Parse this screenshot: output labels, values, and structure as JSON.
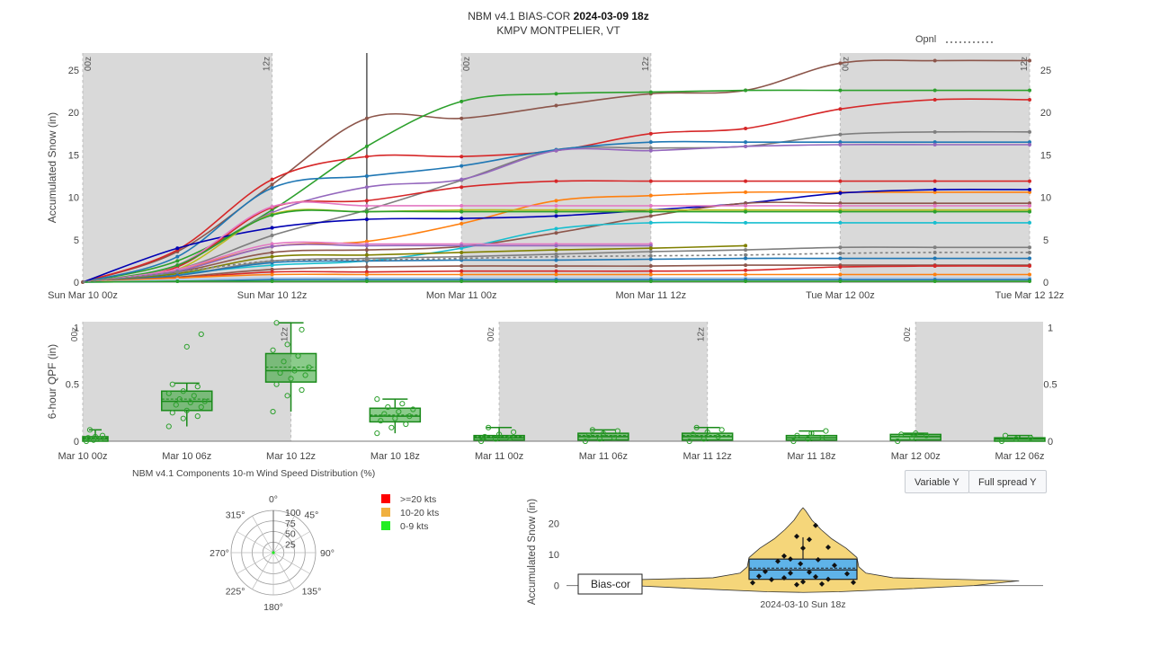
{
  "header": {
    "title_prefix": "NBM v4.1 BIAS-COR",
    "title_bold": "2024-03-09 18z",
    "subtitle": "KMPV MONTPELIER, VT"
  },
  "legend_opnl": {
    "label": "Opnl"
  },
  "buttons": {
    "variable_y": "Variable Y",
    "full_spread_y": "Full spread Y"
  },
  "wind_title": "NBM v4.1 Components 10-m Wind Speed Distribution (%)",
  "chart_data": [
    {
      "type": "line",
      "ylabel": "Accumulated Snow (in)",
      "ylim": [
        0,
        27
      ],
      "x_ticks": [
        "Sun Mar 10 00z",
        "Sun Mar 10 12z",
        "Mon Mar 11 00z",
        "Mon Mar 11 12z",
        "Tue Mar 12 00z",
        "Tue Mar 12 12z"
      ],
      "y_ticks": [
        "0",
        "5",
        "10",
        "15",
        "20",
        "25"
      ],
      "shade_labels": [
        "00z",
        "12z",
        "00z",
        "12z",
        "00z",
        "12z"
      ],
      "x_hours": [
        0,
        6,
        12,
        18,
        24,
        30,
        36,
        42,
        48,
        54,
        60
      ],
      "series": [
        {
          "color": "#8c564b",
          "values": [
            0,
            3.6,
            11.5,
            19.3,
            19.3,
            20.8,
            22.2,
            22.6,
            25.8,
            26.1,
            26.1
          ]
        },
        {
          "color": "#2ca02c",
          "values": [
            0,
            2.5,
            8.5,
            16.0,
            21.3,
            22.2,
            22.4,
            22.6,
            22.6,
            22.6,
            22.6
          ]
        },
        {
          "color": "#d62728",
          "values": [
            0,
            3.8,
            12.1,
            14.8,
            14.8,
            15.5,
            17.5,
            18.1,
            20.4,
            21.5,
            21.5
          ]
        },
        {
          "color": "#7f7f7f",
          "values": [
            0,
            1.5,
            5.5,
            8.5,
            12.0,
            15.6,
            15.8,
            16.0,
            17.4,
            17.7,
            17.7
          ]
        },
        {
          "color": "#1f77b4",
          "values": [
            0,
            3.0,
            11.1,
            12.5,
            13.7,
            15.6,
            16.5,
            16.5,
            16.5,
            16.5,
            16.5
          ]
        },
        {
          "color": "#9467bd",
          "values": [
            0,
            2.0,
            8.2,
            11.2,
            12.1,
            15.5,
            15.5,
            16.0,
            16.2,
            16.2,
            16.2
          ]
        },
        {
          "color": "#d62728",
          "values": [
            0,
            1.8,
            8.8,
            9.6,
            11.2,
            11.9,
            11.9,
            11.9,
            11.9,
            11.9,
            11.9
          ]
        },
        {
          "color": "#ff7f0e",
          "values": [
            0,
            1.5,
            4.2,
            4.8,
            6.9,
            9.6,
            10.2,
            10.6,
            10.6,
            10.6,
            10.6
          ]
        },
        {
          "color": "#0000b3",
          "values": [
            0,
            4.0,
            6.4,
            7.4,
            7.5,
            7.8,
            8.5,
            9.3,
            10.5,
            10.9,
            10.9
          ]
        },
        {
          "color": "#8c564b",
          "values": [
            0,
            1.2,
            3.5,
            3.8,
            4.2,
            5.8,
            7.8,
            9.3,
            9.3,
            9.3,
            9.3
          ]
        },
        {
          "color": "#e377c2",
          "values": [
            0,
            2.0,
            8.9,
            9.0,
            9.0,
            9.0,
            9.0,
            9.0,
            9.0,
            9.0,
            9.0
          ]
        },
        {
          "color": "#bcbd22",
          "values": [
            0,
            1.5,
            8.0,
            8.3,
            8.5,
            8.5,
            8.5,
            8.5,
            8.5,
            8.5,
            8.5
          ]
        },
        {
          "color": "#2ca02c",
          "values": [
            0,
            2.0,
            7.9,
            8.3,
            8.3,
            8.3,
            8.3,
            8.3,
            8.3,
            8.3,
            8.3
          ]
        },
        {
          "color": "#17becf",
          "values": [
            0,
            1.0,
            2.0,
            2.5,
            4.0,
            6.3,
            7.0,
            7.0,
            7.0,
            7.0,
            7.0
          ]
        },
        {
          "color": "#e377c2",
          "values": [
            0,
            1.5,
            4.5,
            4.5,
            4.5,
            4.5,
            4.5
          ]
        },
        {
          "color": "#9467bd",
          "values": [
            0,
            1.3,
            4.2,
            4.3,
            4.3,
            4.3,
            4.3
          ]
        },
        {
          "color": "#808000",
          "values": [
            0,
            1.0,
            3.0,
            3.2,
            3.5,
            3.8,
            4.0,
            4.3
          ]
        },
        {
          "color": "#7f7f7f",
          "values": [
            0,
            0.8,
            2.5,
            2.8,
            3.0,
            3.3,
            3.6,
            3.8,
            4.1,
            4.1,
            4.1
          ]
        },
        {
          "color": "#1f77b4",
          "values": [
            0,
            0.8,
            2.3,
            2.5,
            2.6,
            2.6,
            2.7,
            2.8,
            2.8,
            2.8,
            2.8
          ]
        },
        {
          "color": "#8c564b",
          "values": [
            0,
            0.6,
            1.5,
            1.8,
            1.9,
            1.9,
            1.9,
            2.0,
            2.0,
            2.0,
            2.0
          ]
        },
        {
          "color": "#d62728",
          "values": [
            0,
            0.5,
            1.2,
            1.2,
            1.3,
            1.3,
            1.3,
            1.4,
            1.8,
            1.9,
            1.9
          ]
        },
        {
          "color": "#ff7f0e",
          "values": [
            0,
            0.5,
            0.9,
            0.9,
            0.9,
            0.9,
            0.9,
            0.9,
            0.9,
            0.9,
            0.9
          ]
        },
        {
          "color": "#aec7e8",
          "values": [
            0,
            0.3,
            0.5,
            0.5,
            0.5,
            0.5,
            0.5,
            0.5,
            0.5,
            0.5,
            0.5
          ]
        },
        {
          "color": "#1f77b4",
          "values": [
            0,
            0.1,
            0.3,
            0.3,
            0.3,
            0.3,
            0.3,
            0.3,
            0.3,
            0.3,
            0.3
          ]
        },
        {
          "color": "#2ca02c",
          "values": [
            0,
            0.1,
            0.1,
            0.1,
            0.1,
            0.1,
            0.1,
            0.1,
            0.1,
            0.1,
            0.1
          ]
        },
        {
          "color": "#7f7f7f",
          "dash": true,
          "values": [
            0,
            1.2,
            2.5,
            2.6,
            2.8,
            3.0,
            3.1,
            3.2,
            3.4,
            3.5,
            3.5
          ]
        }
      ]
    },
    {
      "type": "box",
      "ylabel": "6-hour QPF (in)",
      "ylim": [
        0,
        1.05
      ],
      "y_ticks": [
        "0",
        "0.5",
        "1"
      ],
      "categories": [
        "Mar 10 00z",
        "Mar 10 06z",
        "Mar 10 12z",
        "Mar 10 18z",
        "Mar 11 00z",
        "Mar 11 06z",
        "Mar 11 12z",
        "Mar 11 18z",
        "Mar 12 00z",
        "Mar 12 06z"
      ],
      "shade_labels": [
        "00z",
        "12z",
        "00z",
        "12z",
        "00z"
      ],
      "boxes": [
        {
          "q1": 0.0,
          "med": 0.02,
          "q3": 0.04,
          "lo": 0.0,
          "hi": 0.1,
          "mean": 0.03
        },
        {
          "q1": 0.27,
          "med": 0.35,
          "q3": 0.44,
          "lo": 0.13,
          "hi": 0.51,
          "mean": 0.37
        },
        {
          "q1": 0.52,
          "med": 0.62,
          "q3": 0.77,
          "lo": 0.26,
          "hi": 1.04,
          "mean": 0.65
        },
        {
          "q1": 0.17,
          "med": 0.22,
          "q3": 0.29,
          "lo": 0.07,
          "hi": 0.37,
          "mean": 0.23
        },
        {
          "q1": 0.01,
          "med": 0.03,
          "q3": 0.05,
          "lo": 0.0,
          "hi": 0.12,
          "mean": 0.04
        },
        {
          "q1": 0.01,
          "med": 0.04,
          "q3": 0.07,
          "lo": 0.0,
          "hi": 0.1,
          "mean": 0.05
        },
        {
          "q1": 0.01,
          "med": 0.04,
          "q3": 0.07,
          "lo": 0.0,
          "hi": 0.12,
          "mean": 0.05
        },
        {
          "q1": 0.01,
          "med": 0.03,
          "q3": 0.05,
          "lo": 0.0,
          "hi": 0.09,
          "mean": 0.03
        },
        {
          "q1": 0.01,
          "med": 0.04,
          "q3": 0.06,
          "lo": 0.0,
          "hi": 0.07,
          "mean": 0.04
        },
        {
          "q1": 0.0,
          "med": 0.02,
          "q3": 0.03,
          "lo": 0.0,
          "hi": 0.05,
          "mean": 0.02
        }
      ],
      "points": [
        [
          0.0,
          0.01,
          0.02,
          0.03,
          0.04,
          0.05,
          0.1
        ],
        [
          0.13,
          0.2,
          0.22,
          0.25,
          0.27,
          0.3,
          0.32,
          0.34,
          0.35,
          0.37,
          0.4,
          0.42,
          0.44,
          0.48,
          0.5,
          0.83,
          0.94
        ],
        [
          0.26,
          0.4,
          0.45,
          0.5,
          0.55,
          0.58,
          0.6,
          0.62,
          0.65,
          0.7,
          0.75,
          0.8,
          0.85,
          0.98,
          1.04
        ],
        [
          0.07,
          0.12,
          0.15,
          0.18,
          0.2,
          0.22,
          0.24,
          0.26,
          0.28,
          0.3,
          0.33,
          0.37
        ],
        [
          0.0,
          0.02,
          0.03,
          0.04,
          0.06,
          0.08,
          0.12
        ],
        [
          0.0,
          0.02,
          0.03,
          0.05,
          0.07,
          0.09,
          0.1
        ],
        [
          0.0,
          0.02,
          0.04,
          0.06,
          0.08,
          0.1,
          0.12
        ],
        [
          0.0,
          0.02,
          0.03,
          0.05,
          0.07,
          0.09
        ],
        [
          0.0,
          0.03,
          0.05,
          0.06,
          0.07
        ],
        [
          0.0,
          0.02,
          0.03,
          0.05
        ]
      ]
    },
    {
      "type": "polar",
      "angles": [
        "0°",
        "45°",
        "90°",
        "135°",
        "180°",
        "225°",
        "270°",
        "315°"
      ],
      "radial_ticks": [
        "25",
        "50",
        "75",
        "100"
      ],
      "legend": [
        {
          "label": ">=20 kts",
          "color": "#ff0000"
        },
        {
          "label": "10-20 kts",
          "color": "#f0b040"
        },
        {
          "label": "0-9 kts",
          "color": "#22ee22"
        }
      ]
    },
    {
      "type": "violin",
      "ylabel": "Accumulated Snow (in)",
      "ylim": [
        -3,
        25
      ],
      "y_ticks": [
        "0",
        "10",
        "20"
      ],
      "category": "2024-03-10 Sun 18z",
      "annotation": "Bias-cor",
      "box": {
        "q1": 2.0,
        "med": 5.0,
        "q3": 8.5,
        "lo": 0.0,
        "hi": 15.5,
        "mean": 5.6
      },
      "points": [
        [
          0.6,
          19.3
        ],
        [
          0.45,
          15.8
        ],
        [
          0.55,
          14.8
        ],
        [
          0.5,
          12.0
        ],
        [
          0.7,
          12.3
        ],
        [
          0.35,
          9.5
        ],
        [
          0.4,
          8.5
        ],
        [
          0.62,
          8.3
        ],
        [
          0.3,
          7.8
        ],
        [
          0.48,
          7.0
        ],
        [
          0.75,
          6.5
        ],
        [
          0.2,
          4.5
        ],
        [
          0.55,
          4.3
        ],
        [
          0.4,
          4.0
        ],
        [
          0.85,
          3.8
        ],
        [
          0.15,
          3.0
        ],
        [
          0.6,
          2.8
        ],
        [
          0.35,
          2.5
        ],
        [
          0.7,
          2.0
        ],
        [
          0.25,
          1.9
        ],
        [
          0.5,
          1.2
        ],
        [
          0.9,
          1.0
        ],
        [
          0.1,
          0.9
        ],
        [
          0.65,
          0.5
        ],
        [
          0.45,
          0.3
        ]
      ]
    }
  ]
}
